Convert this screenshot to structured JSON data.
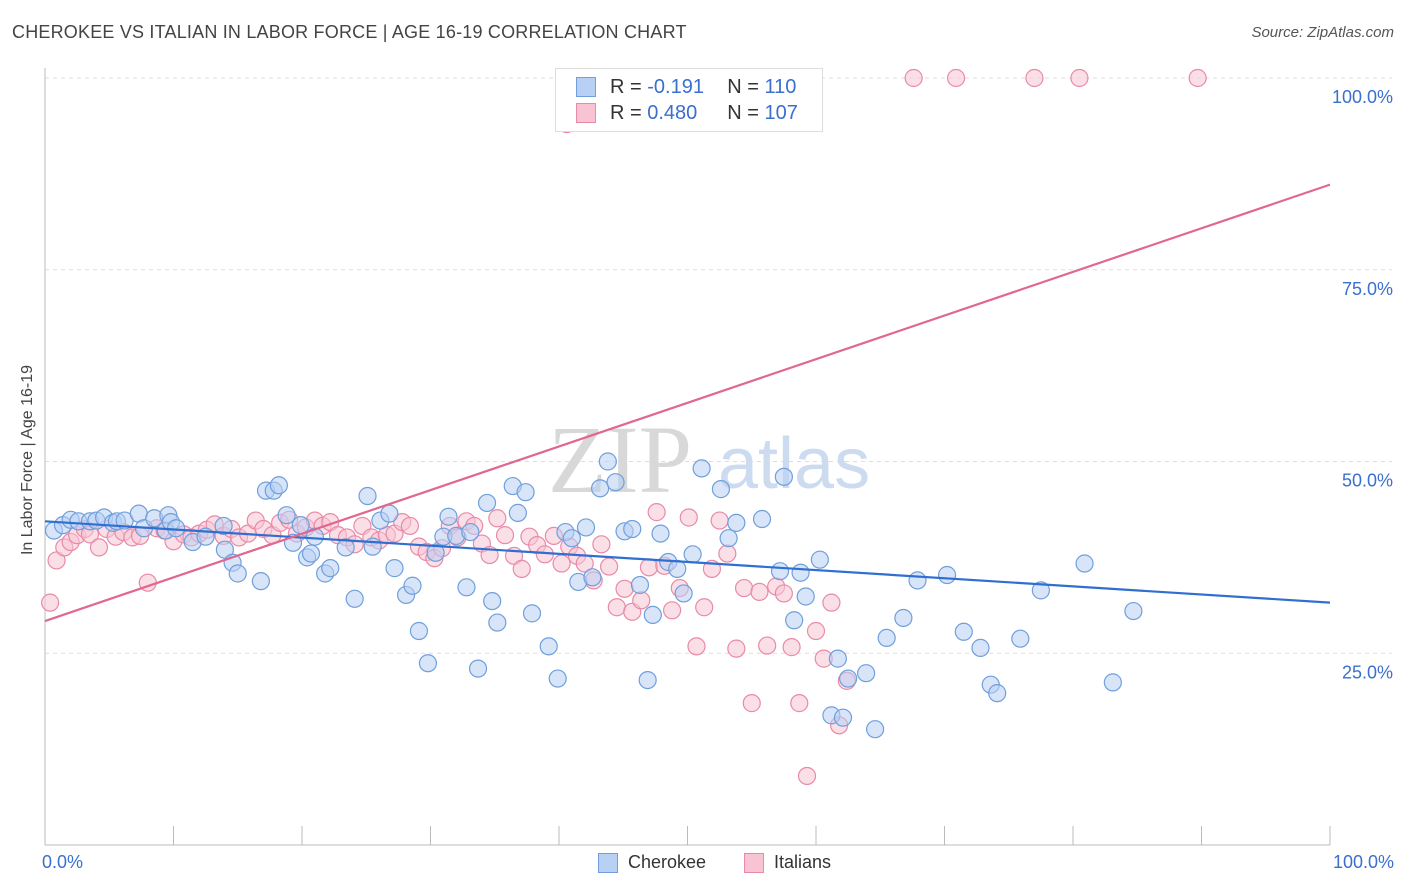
{
  "title": "CHEROKEE VS ITALIAN IN LABOR FORCE | AGE 16-19 CORRELATION CHART",
  "source": "Source: ZipAtlas.com",
  "watermark": {
    "zip": "ZIP",
    "atlas": "atlas"
  },
  "legend": {
    "r_label": "R =",
    "n_label": "N =",
    "items": [
      {
        "name": "Cherokee",
        "r": "-0.191",
        "n": "110",
        "fill": "#b8d0f4",
        "stroke": "#6f9fdc"
      },
      {
        "name": "Italians",
        "r": "0.480",
        "n": "107",
        "fill": "#f8c4d4",
        "stroke": "#e88aa8"
      }
    ]
  },
  "chart_data": {
    "type": "scatter",
    "title": "CHEROKEE VS ITALIAN IN LABOR FORCE | AGE 16-19 CORRELATION CHART",
    "xlabel": "",
    "ylabel": "In Labor Force | Age 16-19",
    "xlim": [
      0,
      100
    ],
    "ylim": [
      0,
      100
    ],
    "x_tick_labels": [
      "0.0%",
      "100.0%"
    ],
    "y_tick_labels": [
      "25.0%",
      "50.0%",
      "75.0%",
      "100.0%"
    ],
    "y_ticks": [
      25,
      50,
      75,
      100
    ],
    "grid": true,
    "legend_position": "top-center",
    "series": [
      {
        "name": "Cherokee",
        "color": "#6f9fdc",
        "fill": "#b8d0f4",
        "trend_color": "#2f6fd0",
        "trend": {
          "x": [
            0,
            100
          ],
          "y": [
            42.2,
            31.6
          ]
        },
        "points": [
          [
            0.7,
            41
          ],
          [
            1.4,
            41.7
          ],
          [
            2,
            42.4
          ],
          [
            2.6,
            42.2
          ],
          [
            3.5,
            42.2
          ],
          [
            4,
            42.3
          ],
          [
            4.6,
            42.7
          ],
          [
            5.3,
            42
          ],
          [
            5.6,
            42.2
          ],
          [
            6.2,
            42.3
          ],
          [
            7.3,
            43.2
          ],
          [
            7.7,
            41.3
          ],
          [
            8.5,
            42.6
          ],
          [
            9.4,
            41
          ],
          [
            9.6,
            43
          ],
          [
            9.8,
            42.1
          ],
          [
            10.2,
            41.3
          ],
          [
            11.5,
            39.5
          ],
          [
            12.5,
            40.2
          ],
          [
            13.9,
            41.6
          ],
          [
            14,
            38.5
          ],
          [
            14.6,
            36.8
          ],
          [
            15,
            35.4
          ],
          [
            16.8,
            34.4
          ],
          [
            17.2,
            46.2
          ],
          [
            17.8,
            46.2
          ],
          [
            18.2,
            46.9
          ],
          [
            18.8,
            43
          ],
          [
            19.3,
            39.4
          ],
          [
            19.9,
            41.7
          ],
          [
            20.4,
            37.5
          ],
          [
            20.7,
            38
          ],
          [
            21,
            40.2
          ],
          [
            21.8,
            35.4
          ],
          [
            22.2,
            36.1
          ],
          [
            23.4,
            38.8
          ],
          [
            24.1,
            32.1
          ],
          [
            25.1,
            45.5
          ],
          [
            25.5,
            38.9
          ],
          [
            26.1,
            42.3
          ],
          [
            26.8,
            43.2
          ],
          [
            27.2,
            36.1
          ],
          [
            28.1,
            32.6
          ],
          [
            28.6,
            33.8
          ],
          [
            29.1,
            27.9
          ],
          [
            29.8,
            23.7
          ],
          [
            30.4,
            38.1
          ],
          [
            31,
            40.2
          ],
          [
            31.4,
            42.8
          ],
          [
            32,
            40.3
          ],
          [
            32.8,
            33.6
          ],
          [
            33.1,
            40.8
          ],
          [
            33.7,
            23
          ],
          [
            34.4,
            44.6
          ],
          [
            34.8,
            31.8
          ],
          [
            35.2,
            29
          ],
          [
            36.4,
            46.8
          ],
          [
            36.8,
            43.3
          ],
          [
            37.4,
            46
          ],
          [
            37.9,
            30.2
          ],
          [
            39.2,
            25.9
          ],
          [
            39.9,
            21.7
          ],
          [
            40.5,
            40.8
          ],
          [
            41,
            40
          ],
          [
            41.5,
            34.3
          ],
          [
            42.1,
            41.4
          ],
          [
            42.6,
            34.9
          ],
          [
            43.2,
            46.5
          ],
          [
            43.8,
            50
          ],
          [
            44.4,
            47.3
          ],
          [
            45.1,
            40.9
          ],
          [
            45.7,
            41.2
          ],
          [
            46.3,
            33.9
          ],
          [
            46.9,
            21.5
          ],
          [
            47.3,
            30
          ],
          [
            47.9,
            40.6
          ],
          [
            48.5,
            36.9
          ],
          [
            49.2,
            36
          ],
          [
            49.7,
            32.8
          ],
          [
            50.4,
            37.9
          ],
          [
            51.1,
            49.1
          ],
          [
            52.6,
            46.4
          ],
          [
            53.2,
            40
          ],
          [
            53.8,
            42
          ],
          [
            55.8,
            42.5
          ],
          [
            57.2,
            35.7
          ],
          [
            57.5,
            48
          ],
          [
            58.3,
            29.3
          ],
          [
            58.8,
            35.5
          ],
          [
            59.2,
            32.4
          ],
          [
            60.3,
            37.2
          ],
          [
            61.2,
            16.9
          ],
          [
            61.7,
            24.3
          ],
          [
            62.1,
            16.6
          ],
          [
            62.5,
            21.7
          ],
          [
            63.9,
            22.4
          ],
          [
            64.6,
            15.1
          ],
          [
            65.5,
            27
          ],
          [
            66.8,
            29.6
          ],
          [
            67.9,
            34.5
          ],
          [
            70.2,
            35.2
          ],
          [
            71.5,
            27.8
          ],
          [
            72.8,
            25.7
          ],
          [
            73.6,
            20.9
          ],
          [
            74.1,
            19.8
          ],
          [
            75.9,
            26.9
          ],
          [
            77.5,
            33.2
          ],
          [
            80.9,
            36.7
          ],
          [
            83.1,
            21.2
          ],
          [
            84.7,
            30.5
          ]
        ]
      },
      {
        "name": "Italians",
        "color": "#e88aa8",
        "fill": "#f8c4d4",
        "trend_color": "#e06890",
        "trend": {
          "x": [
            0,
            100
          ],
          "y": [
            29.2,
            86.1
          ]
        },
        "points": [
          [
            0.4,
            31.6
          ],
          [
            0.9,
            37.1
          ],
          [
            1.5,
            38.8
          ],
          [
            2,
            39.5
          ],
          [
            2.5,
            40.4
          ],
          [
            3.1,
            41.2
          ],
          [
            3.5,
            40.5
          ],
          [
            4.2,
            38.8
          ],
          [
            4.8,
            41.2
          ],
          [
            5.5,
            40.2
          ],
          [
            6.1,
            40.8
          ],
          [
            6.8,
            40.1
          ],
          [
            7.4,
            40.3
          ],
          [
            8,
            34.2
          ],
          [
            8.7,
            41.3
          ],
          [
            9.3,
            41
          ],
          [
            10,
            39.6
          ],
          [
            10.8,
            40.5
          ],
          [
            11.4,
            40.1
          ],
          [
            12,
            40.6
          ],
          [
            12.6,
            41.1
          ],
          [
            13.2,
            41.8
          ],
          [
            13.9,
            40.3
          ],
          [
            14.5,
            41.2
          ],
          [
            15.1,
            40.1
          ],
          [
            15.8,
            40.6
          ],
          [
            16.4,
            42.3
          ],
          [
            17,
            41.2
          ],
          [
            17.7,
            40.4
          ],
          [
            18.3,
            42
          ],
          [
            19,
            42.4
          ],
          [
            19.6,
            40.6
          ],
          [
            20.3,
            41.4
          ],
          [
            21,
            42.3
          ],
          [
            21.6,
            41.6
          ],
          [
            22.2,
            42.1
          ],
          [
            22.8,
            40.4
          ],
          [
            23.5,
            40.1
          ],
          [
            24.1,
            39.2
          ],
          [
            24.7,
            41.6
          ],
          [
            25.4,
            40.1
          ],
          [
            26,
            39.7
          ],
          [
            26.6,
            40.4
          ],
          [
            27.2,
            40.6
          ],
          [
            27.8,
            42.1
          ],
          [
            28.4,
            41.6
          ],
          [
            29.1,
            38.9
          ],
          [
            29.7,
            38.2
          ],
          [
            30.3,
            37.4
          ],
          [
            30.9,
            38.7
          ],
          [
            31.5,
            41.6
          ],
          [
            32.1,
            40.1
          ],
          [
            32.8,
            42.2
          ],
          [
            33.4,
            41.6
          ],
          [
            34,
            39.3
          ],
          [
            34.6,
            37.8
          ],
          [
            35.2,
            42.6
          ],
          [
            35.8,
            40.4
          ],
          [
            36.5,
            37.7
          ],
          [
            37.1,
            36
          ],
          [
            37.7,
            40.2
          ],
          [
            38.3,
            39.1
          ],
          [
            38.9,
            37.9
          ],
          [
            39.6,
            40.3
          ],
          [
            40.2,
            36.7
          ],
          [
            40.8,
            38.9
          ],
          [
            41.4,
            37.7
          ],
          [
            42,
            36.7
          ],
          [
            42.7,
            34.5
          ],
          [
            43.3,
            39.2
          ],
          [
            43.9,
            36.3
          ],
          [
            44.5,
            31
          ],
          [
            45.1,
            33.4
          ],
          [
            45.7,
            30.4
          ],
          [
            46.4,
            31.9
          ],
          [
            47,
            36.2
          ],
          [
            47.6,
            43.4
          ],
          [
            48.2,
            36.4
          ],
          [
            48.8,
            30.6
          ],
          [
            49.4,
            33.5
          ],
          [
            50.1,
            42.7
          ],
          [
            50.7,
            25.9
          ],
          [
            51.3,
            31
          ],
          [
            51.9,
            36
          ],
          [
            52.5,
            42.3
          ],
          [
            53.1,
            38
          ],
          [
            53.8,
            25.6
          ],
          [
            54.4,
            33.5
          ],
          [
            55,
            18.5
          ],
          [
            55.6,
            33
          ],
          [
            56.2,
            26
          ],
          [
            56.9,
            33.7
          ],
          [
            57.5,
            32.8
          ],
          [
            58.1,
            25.8
          ],
          [
            58.7,
            18.5
          ],
          [
            59.3,
            9
          ],
          [
            60,
            27.9
          ],
          [
            60.6,
            24.3
          ],
          [
            61.2,
            31.6
          ],
          [
            61.8,
            15.6
          ],
          [
            62.4,
            21.4
          ],
          [
            40.6,
            94
          ],
          [
            43.2,
            99.7
          ],
          [
            46,
            99.7
          ],
          [
            48.1,
            99.7
          ],
          [
            51.6,
            99.7
          ],
          [
            54.9,
            99.7
          ]
        ]
      }
    ],
    "extra_italian_top": [
      [
        67.6,
        100
      ],
      [
        70.9,
        100
      ],
      [
        77,
        100
      ],
      [
        80.5,
        100
      ],
      [
        89.7,
        100
      ]
    ]
  },
  "axes": {
    "x_left": "0.0%",
    "x_right": "100.0%",
    "y_ticks": [
      "25.0%",
      "50.0%",
      "75.0%",
      "100.0%"
    ]
  }
}
